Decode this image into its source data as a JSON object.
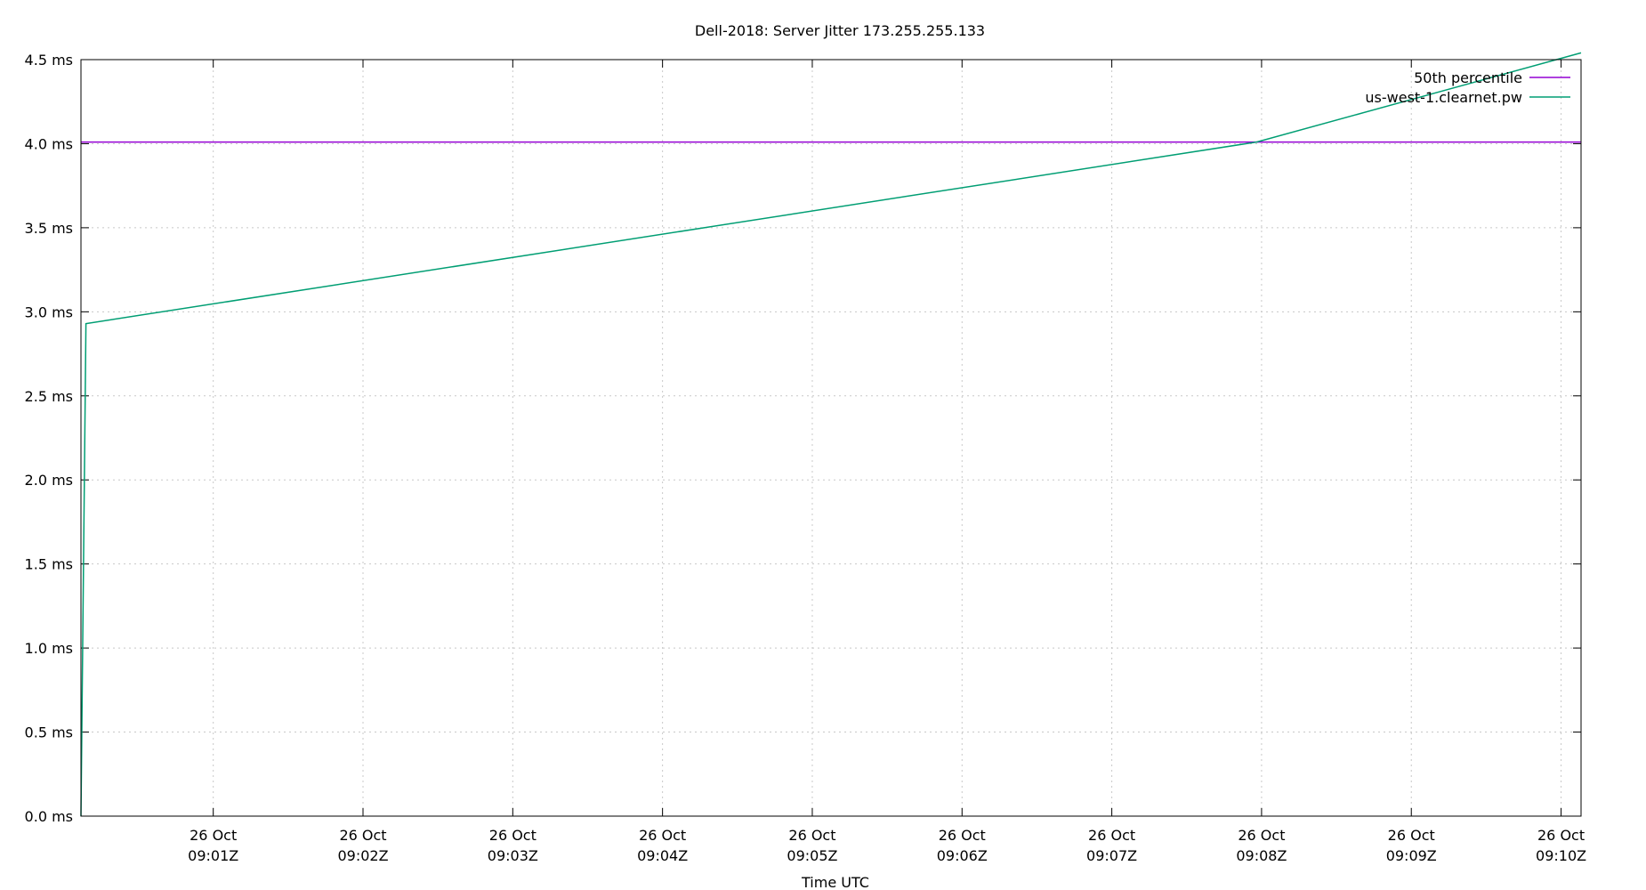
{
  "chart_data": {
    "type": "line",
    "title": "Dell-2018: Server Jitter 173.255.255.133",
    "xlabel": "Time UTC",
    "ylabel": "",
    "ylim": [
      0,
      4.5
    ],
    "y_unit": "ms",
    "y_ticks": [
      {
        "value": 0.0,
        "label": "0.0 ms"
      },
      {
        "value": 0.5,
        "label": "0.5 ms"
      },
      {
        "value": 1.0,
        "label": "1.0 ms"
      },
      {
        "value": 1.5,
        "label": "1.5 ms"
      },
      {
        "value": 2.0,
        "label": "2.0 ms"
      },
      {
        "value": 2.5,
        "label": "2.5 ms"
      },
      {
        "value": 3.0,
        "label": "3.0 ms"
      },
      {
        "value": 3.5,
        "label": "3.5 ms"
      },
      {
        "value": 4.0,
        "label": "4.0 ms"
      },
      {
        "value": 4.5,
        "label": "4.5 ms"
      }
    ],
    "xlim": [
      "26 Oct 09:00:07Z",
      "26 Oct 09:10:08Z"
    ],
    "x_ticks": [
      {
        "value": "09:01:00",
        "line1": "26 Oct",
        "line2": "09:01Z"
      },
      {
        "value": "09:02:00",
        "line1": "26 Oct",
        "line2": "09:02Z"
      },
      {
        "value": "09:03:00",
        "line1": "26 Oct",
        "line2": "09:03Z"
      },
      {
        "value": "09:04:00",
        "line1": "26 Oct",
        "line2": "09:04Z"
      },
      {
        "value": "09:05:00",
        "line1": "26 Oct",
        "line2": "09:05Z"
      },
      {
        "value": "09:06:00",
        "line1": "26 Oct",
        "line2": "09:06Z"
      },
      {
        "value": "09:07:00",
        "line1": "26 Oct",
        "line2": "09:07Z"
      },
      {
        "value": "09:08:00",
        "line1": "26 Oct",
        "line2": "09:08Z"
      },
      {
        "value": "09:09:00",
        "line1": "26 Oct",
        "line2": "09:09Z"
      },
      {
        "value": "09:10:00",
        "line1": "26 Oct",
        "line2": "09:10Z"
      }
    ],
    "grid": true,
    "legend_position": "top-right",
    "series": [
      {
        "name": "50th percentile",
        "color": "#9400d3",
        "points": [
          {
            "x": "09:00:07",
            "y": 4.01
          },
          {
            "x": "09:10:08",
            "y": 4.01
          }
        ]
      },
      {
        "name": "us-west-1.clearnet.pw",
        "color": "#009e73",
        "points": [
          {
            "x": "09:00:07",
            "y": 0.0
          },
          {
            "x": "09:00:09",
            "y": 2.93
          },
          {
            "x": "09:07:58",
            "y": 4.01
          },
          {
            "x": "09:10:08",
            "y": 4.54
          }
        ]
      }
    ]
  }
}
